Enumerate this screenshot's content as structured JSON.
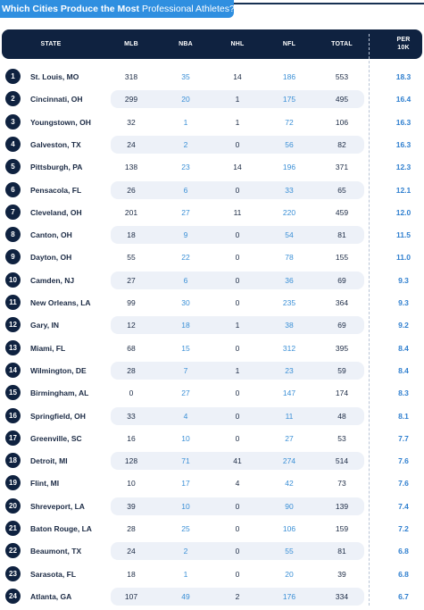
{
  "title_bold": "Which Cities Produce the Most",
  "title_light": "Professional Athletes?",
  "chart_data": {
    "type": "table",
    "title": "Which Cities Produce the Most Professional Athletes?",
    "columns": [
      "STATE",
      "MLB",
      "NBA",
      "NHL",
      "NFL",
      "TOTAL",
      "PER 10K"
    ],
    "per10k_header": [
      "PER",
      "10K"
    ],
    "rows": [
      {
        "rank": "1",
        "state": "St. Louis, MO",
        "mlb": "318",
        "nba": "35",
        "nhl": "14",
        "nfl": "186",
        "total": "553",
        "per10k": "18.3"
      },
      {
        "rank": "2",
        "state": "Cincinnati, OH",
        "mlb": "299",
        "nba": "20",
        "nhl": "1",
        "nfl": "175",
        "total": "495",
        "per10k": "16.4"
      },
      {
        "rank": "3",
        "state": "Youngstown, OH",
        "mlb": "32",
        "nba": "1",
        "nhl": "1",
        "nfl": "72",
        "total": "106",
        "per10k": "16.3"
      },
      {
        "rank": "4",
        "state": "Galveston, TX",
        "mlb": "24",
        "nba": "2",
        "nhl": "0",
        "nfl": "56",
        "total": "82",
        "per10k": "16.3"
      },
      {
        "rank": "5",
        "state": "Pittsburgh, PA",
        "mlb": "138",
        "nba": "23",
        "nhl": "14",
        "nfl": "196",
        "total": "371",
        "per10k": "12.3"
      },
      {
        "rank": "6",
        "state": "Pensacola, FL",
        "mlb": "26",
        "nba": "6",
        "nhl": "0",
        "nfl": "33",
        "total": "65",
        "per10k": "12.1"
      },
      {
        "rank": "7",
        "state": "Cleveland, OH",
        "mlb": "201",
        "nba": "27",
        "nhl": "11",
        "nfl": "220",
        "total": "459",
        "per10k": "12.0"
      },
      {
        "rank": "8",
        "state": "Canton, OH",
        "mlb": "18",
        "nba": "9",
        "nhl": "0",
        "nfl": "54",
        "total": "81",
        "per10k": "11.5"
      },
      {
        "rank": "9",
        "state": "Dayton, OH",
        "mlb": "55",
        "nba": "22",
        "nhl": "0",
        "nfl": "78",
        "total": "155",
        "per10k": "11.0"
      },
      {
        "rank": "10",
        "state": "Camden, NJ",
        "mlb": "27",
        "nba": "6",
        "nhl": "0",
        "nfl": "36",
        "total": "69",
        "per10k": "9.3"
      },
      {
        "rank": "11",
        "state": "New Orleans, LA",
        "mlb": "99",
        "nba": "30",
        "nhl": "0",
        "nfl": "235",
        "total": "364",
        "per10k": "9.3"
      },
      {
        "rank": "12",
        "state": "Gary, IN",
        "mlb": "12",
        "nba": "18",
        "nhl": "1",
        "nfl": "38",
        "total": "69",
        "per10k": "9.2"
      },
      {
        "rank": "13",
        "state": "Miami, FL",
        "mlb": "68",
        "nba": "15",
        "nhl": "0",
        "nfl": "312",
        "total": "395",
        "per10k": "8.4"
      },
      {
        "rank": "14",
        "state": "Wilmington, DE",
        "mlb": "28",
        "nba": "7",
        "nhl": "1",
        "nfl": "23",
        "total": "59",
        "per10k": "8.4"
      },
      {
        "rank": "15",
        "state": "Birmingham, AL",
        "mlb": "0",
        "nba": "27",
        "nhl": "0",
        "nfl": "147",
        "total": "174",
        "per10k": "8.3"
      },
      {
        "rank": "16",
        "state": "Springfield, OH",
        "mlb": "33",
        "nba": "4",
        "nhl": "0",
        "nfl": "11",
        "total": "48",
        "per10k": "8.1"
      },
      {
        "rank": "17",
        "state": "Greenville, SC",
        "mlb": "16",
        "nba": "10",
        "nhl": "0",
        "nfl": "27",
        "total": "53",
        "per10k": "7.7"
      },
      {
        "rank": "18",
        "state": "Detroit, MI",
        "mlb": "128",
        "nba": "71",
        "nhl": "41",
        "nfl": "274",
        "total": "514",
        "per10k": "7.6"
      },
      {
        "rank": "19",
        "state": "Flint, MI",
        "mlb": "10",
        "nba": "17",
        "nhl": "4",
        "nfl": "42",
        "total": "73",
        "per10k": "7.6"
      },
      {
        "rank": "20",
        "state": "Shreveport, LA",
        "mlb": "39",
        "nba": "10",
        "nhl": "0",
        "nfl": "90",
        "total": "139",
        "per10k": "7.4"
      },
      {
        "rank": "21",
        "state": "Baton Rouge, LA",
        "mlb": "28",
        "nba": "25",
        "nhl": "0",
        "nfl": "106",
        "total": "159",
        "per10k": "7.2"
      },
      {
        "rank": "22",
        "state": "Beaumont, TX",
        "mlb": "24",
        "nba": "2",
        "nhl": "0",
        "nfl": "55",
        "total": "81",
        "per10k": "6.8"
      },
      {
        "rank": "23",
        "state": "Sarasota, FL",
        "mlb": "18",
        "nba": "1",
        "nhl": "0",
        "nfl": "20",
        "total": "39",
        "per10k": "6.8"
      },
      {
        "rank": "24",
        "state": "Atlanta, GA",
        "mlb": "107",
        "nba": "49",
        "nhl": "2",
        "nfl": "176",
        "total": "334",
        "per10k": "6.7"
      }
    ]
  },
  "colors": {
    "header_bg": "#0f2240",
    "banner_bg": "#2f8fe0",
    "accent_blue": "#3a8fd6",
    "row_band": "#edf1f8"
  }
}
